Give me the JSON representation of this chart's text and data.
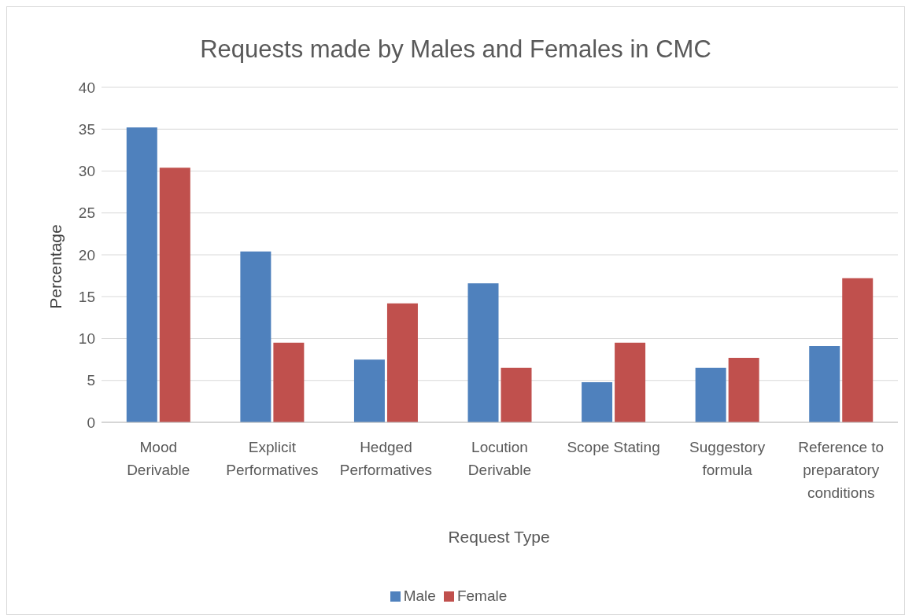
{
  "chart_data": {
    "type": "bar",
    "title": "Requests made by Males and Females in CMC",
    "xlabel": "Request Type",
    "ylabel": "Percentage",
    "categories": [
      "Mood Derivable",
      "Explicit Performatives",
      "Hedged Performatives",
      "Locution Derivable",
      "Scope Stating",
      "Suggestory formula",
      "Reference to preparatory conditions"
    ],
    "series": [
      {
        "name": "Male",
        "color": "#4f81bd",
        "values": [
          35.2,
          20.4,
          7.5,
          16.6,
          4.8,
          6.5,
          9.1
        ]
      },
      {
        "name": "Female",
        "color": "#c0504d",
        "values": [
          30.4,
          9.5,
          14.2,
          6.5,
          9.5,
          7.7,
          17.2
        ]
      }
    ],
    "ylim": [
      0,
      40
    ],
    "yticks": [
      0,
      5,
      10,
      15,
      20,
      25,
      30,
      35,
      40
    ],
    "grid": "y",
    "legend": "bottom"
  }
}
